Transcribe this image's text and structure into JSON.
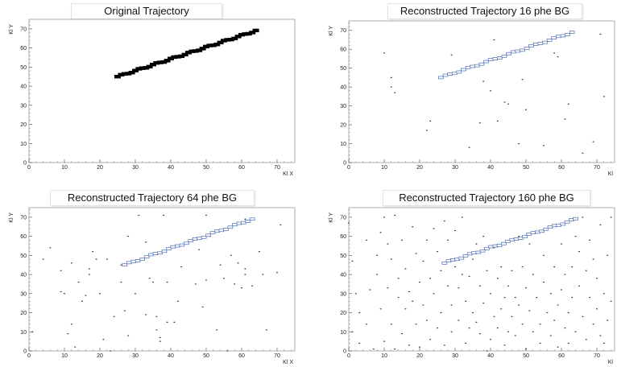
{
  "chart_data": [
    {
      "type": "scatter",
      "title": "Original Trajectory",
      "xlabel": "Kl X",
      "ylabel": "Kl Y",
      "xlim": [
        0,
        75
      ],
      "ylim": [
        0,
        75
      ],
      "xticks": [
        0,
        10,
        20,
        30,
        40,
        50,
        60,
        70
      ],
      "yticks": [
        0,
        10,
        20,
        30,
        40,
        50,
        60,
        70
      ],
      "trajectory": {
        "x_start": 25,
        "y_start": 45,
        "x_end": 64,
        "y_end": 69,
        "points": 40,
        "color": "#000000"
      },
      "background": []
    },
    {
      "type": "scatter",
      "title": "Reconstructed Trajectory 16 phe BG",
      "xlabel": "Kl",
      "ylabel": "Kl Y",
      "xlim": [
        0,
        75
      ],
      "ylim": [
        0,
        75
      ],
      "xticks": [
        0,
        10,
        20,
        30,
        40,
        50,
        60,
        70
      ],
      "yticks": [
        0,
        10,
        20,
        30,
        40,
        50,
        60,
        70
      ],
      "trajectory": {
        "x_start": 26,
        "y_start": 45,
        "x_end": 63,
        "y_end": 69,
        "points": 30,
        "color": "#4a6bb5"
      },
      "background": [
        [
          10,
          58
        ],
        [
          12,
          45
        ],
        [
          12,
          40
        ],
        [
          13,
          37
        ],
        [
          22,
          17
        ],
        [
          23,
          22
        ],
        [
          29,
          57
        ],
        [
          34,
          8
        ],
        [
          37,
          21
        ],
        [
          38,
          43
        ],
        [
          40,
          38
        ],
        [
          42,
          22
        ],
        [
          44,
          32
        ],
        [
          45,
          31
        ],
        [
          48,
          10
        ],
        [
          49,
          44
        ],
        [
          50,
          28
        ],
        [
          55,
          9
        ],
        [
          58,
          58
        ],
        [
          59,
          56
        ],
        [
          62,
          31
        ],
        [
          66,
          5
        ],
        [
          69,
          11
        ],
        [
          71,
          68
        ],
        [
          72,
          35
        ],
        [
          61,
          23
        ],
        [
          41,
          65
        ]
      ]
    },
    {
      "type": "scatter",
      "title": "Reconstructed Trajectory 64 phe BG",
      "xlabel": "Kl X",
      "ylabel": "Kl Y",
      "xlim": [
        0,
        75
      ],
      "ylim": [
        0,
        75
      ],
      "xticks": [
        0,
        10,
        20,
        30,
        40,
        50,
        60,
        70
      ],
      "yticks": [
        0,
        10,
        20,
        30,
        40,
        50,
        60,
        70
      ],
      "trajectory": {
        "x_start": 27,
        "y_start": 45,
        "x_end": 63,
        "y_end": 69,
        "points": 30,
        "color": "#4a6bb5"
      },
      "background": [
        [
          1,
          10
        ],
        [
          4,
          48
        ],
        [
          6,
          54
        ],
        [
          9,
          42
        ],
        [
          9,
          31
        ],
        [
          10,
          30
        ],
        [
          11,
          9
        ],
        [
          12,
          46
        ],
        [
          12,
          14
        ],
        [
          13,
          2
        ],
        [
          14,
          36
        ],
        [
          15,
          26
        ],
        [
          16,
          29
        ],
        [
          17,
          43
        ],
        [
          17,
          40
        ],
        [
          18,
          52
        ],
        [
          19,
          48
        ],
        [
          20,
          30
        ],
        [
          21,
          6
        ],
        [
          22,
          48
        ],
        [
          23,
          0
        ],
        [
          24,
          18
        ],
        [
          26,
          45
        ],
        [
          26,
          36
        ],
        [
          27,
          21
        ],
        [
          28,
          60
        ],
        [
          28,
          8
        ],
        [
          30,
          30
        ],
        [
          31,
          71
        ],
        [
          33,
          57
        ],
        [
          33,
          19
        ],
        [
          34,
          38
        ],
        [
          35,
          36
        ],
        [
          36,
          18
        ],
        [
          36,
          11
        ],
        [
          37,
          7
        ],
        [
          37,
          5
        ],
        [
          38,
          71
        ],
        [
          39,
          36
        ],
        [
          39,
          15
        ],
        [
          41,
          15
        ],
        [
          42,
          26
        ],
        [
          43,
          44
        ],
        [
          46,
          58
        ],
        [
          47,
          35
        ],
        [
          48,
          53
        ],
        [
          49,
          23
        ],
        [
          50,
          37
        ],
        [
          50,
          71
        ],
        [
          51,
          60
        ],
        [
          53,
          11
        ],
        [
          54,
          45
        ],
        [
          55,
          38
        ],
        [
          56,
          0
        ],
        [
          57,
          50
        ],
        [
          58,
          35
        ],
        [
          59,
          46
        ],
        [
          60,
          33
        ],
        [
          61,
          43
        ],
        [
          61,
          40
        ],
        [
          63,
          34
        ],
        [
          65,
          52
        ],
        [
          66,
          40
        ],
        [
          67,
          11
        ],
        [
          70,
          41
        ],
        [
          71,
          66
        ],
        [
          61,
          69
        ]
      ]
    },
    {
      "type": "scatter",
      "title": "Reconstructed Trajectory 160 phe BG",
      "xlabel": "Kl",
      "ylabel": "Kl Y",
      "xlim": [
        0,
        75
      ],
      "ylim": [
        0,
        75
      ],
      "xticks": [
        0,
        10,
        20,
        30,
        40,
        50,
        60,
        70
      ],
      "yticks": [
        0,
        10,
        20,
        30,
        40,
        50,
        60,
        70
      ],
      "trajectory": {
        "x_start": 27,
        "y_start": 46,
        "x_end": 64,
        "y_end": 69,
        "points": 32,
        "color": "#4a6bb5"
      },
      "background": [
        [
          0,
          67
        ],
        [
          1,
          47
        ],
        [
          1,
          10
        ],
        [
          2,
          30
        ],
        [
          3,
          20
        ],
        [
          3,
          4
        ],
        [
          5,
          58
        ],
        [
          5,
          14
        ],
        [
          6,
          32
        ],
        [
          7,
          1
        ],
        [
          8,
          50
        ],
        [
          8,
          40
        ],
        [
          9,
          22
        ],
        [
          9,
          62
        ],
        [
          10,
          70
        ],
        [
          10,
          5
        ],
        [
          11,
          56
        ],
        [
          11,
          33
        ],
        [
          12,
          48
        ],
        [
          12,
          14
        ],
        [
          13,
          71
        ],
        [
          13,
          1
        ],
        [
          14,
          38
        ],
        [
          14,
          28
        ],
        [
          15,
          58
        ],
        [
          15,
          9
        ],
        [
          16,
          43
        ],
        [
          16,
          22
        ],
        [
          17,
          31
        ],
        [
          17,
          3
        ],
        [
          18,
          26
        ],
        [
          18,
          65
        ],
        [
          19,
          14
        ],
        [
          19,
          51
        ],
        [
          20,
          36
        ],
        [
          20,
          2
        ],
        [
          21,
          47
        ],
        [
          21,
          24
        ],
        [
          22,
          58
        ],
        [
          22,
          16
        ],
        [
          23,
          38
        ],
        [
          23,
          6
        ],
        [
          24,
          64
        ],
        [
          24,
          30
        ],
        [
          25,
          52
        ],
        [
          25,
          12
        ],
        [
          26,
          42
        ],
        [
          26,
          20
        ],
        [
          27,
          68
        ],
        [
          27,
          3
        ],
        [
          28,
          34
        ],
        [
          28,
          58
        ],
        [
          29,
          24
        ],
        [
          29,
          10
        ],
        [
          30,
          44
        ],
        [
          30,
          63
        ],
        [
          31,
          33
        ],
        [
          31,
          16
        ],
        [
          32,
          40
        ],
        [
          32,
          70
        ],
        [
          33,
          26
        ],
        [
          33,
          4
        ],
        [
          34,
          12
        ],
        [
          34,
          39
        ],
        [
          35,
          20
        ],
        [
          35,
          48
        ],
        [
          36,
          15
        ],
        [
          36,
          56
        ],
        [
          37,
          34
        ],
        [
          37,
          9
        ],
        [
          38,
          60
        ],
        [
          38,
          25
        ],
        [
          39,
          42
        ],
        [
          39,
          0
        ],
        [
          40,
          6
        ],
        [
          40,
          30
        ],
        [
          41,
          18
        ],
        [
          41,
          54
        ],
        [
          42,
          38
        ],
        [
          42,
          12
        ],
        [
          43,
          44
        ],
        [
          43,
          22
        ],
        [
          44,
          28
        ],
        [
          44,
          3
        ],
        [
          45,
          10
        ],
        [
          45,
          34
        ],
        [
          46,
          18
        ],
        [
          46,
          42
        ],
        [
          47,
          8
        ],
        [
          47,
          28
        ],
        [
          48,
          24
        ],
        [
          48,
          60
        ],
        [
          49,
          14
        ],
        [
          49,
          44
        ],
        [
          50,
          33
        ],
        [
          50,
          1
        ],
        [
          51,
          21
        ],
        [
          51,
          56
        ],
        [
          52,
          10
        ],
        [
          52,
          40
        ],
        [
          53,
          28
        ],
        [
          53,
          62
        ],
        [
          54,
          14
        ],
        [
          54,
          4
        ],
        [
          55,
          36
        ],
        [
          55,
          50
        ],
        [
          56,
          20
        ],
        [
          56,
          64
        ],
        [
          57,
          30
        ],
        [
          57,
          8
        ],
        [
          58,
          44
        ],
        [
          58,
          16
        ],
        [
          59,
          24
        ],
        [
          59,
          2
        ],
        [
          60,
          56
        ],
        [
          60,
          32
        ],
        [
          61,
          12
        ],
        [
          61,
          40
        ],
        [
          62,
          4
        ],
        [
          62,
          20
        ],
        [
          63,
          44
        ],
        [
          63,
          28
        ],
        [
          64,
          10
        ],
        [
          64,
          60
        ],
        [
          65,
          34
        ],
        [
          65,
          52
        ],
        [
          66,
          18
        ],
        [
          66,
          70
        ],
        [
          67,
          6
        ],
        [
          67,
          42
        ],
        [
          68,
          28
        ],
        [
          68,
          58
        ],
        [
          69,
          14
        ],
        [
          69,
          48
        ],
        [
          70,
          38
        ],
        [
          70,
          22
        ],
        [
          71,
          8
        ],
        [
          71,
          66
        ],
        [
          72,
          30
        ],
        [
          72,
          4
        ],
        [
          73,
          50
        ],
        [
          73,
          16
        ],
        [
          74,
          26
        ],
        [
          74,
          70
        ]
      ]
    }
  ]
}
